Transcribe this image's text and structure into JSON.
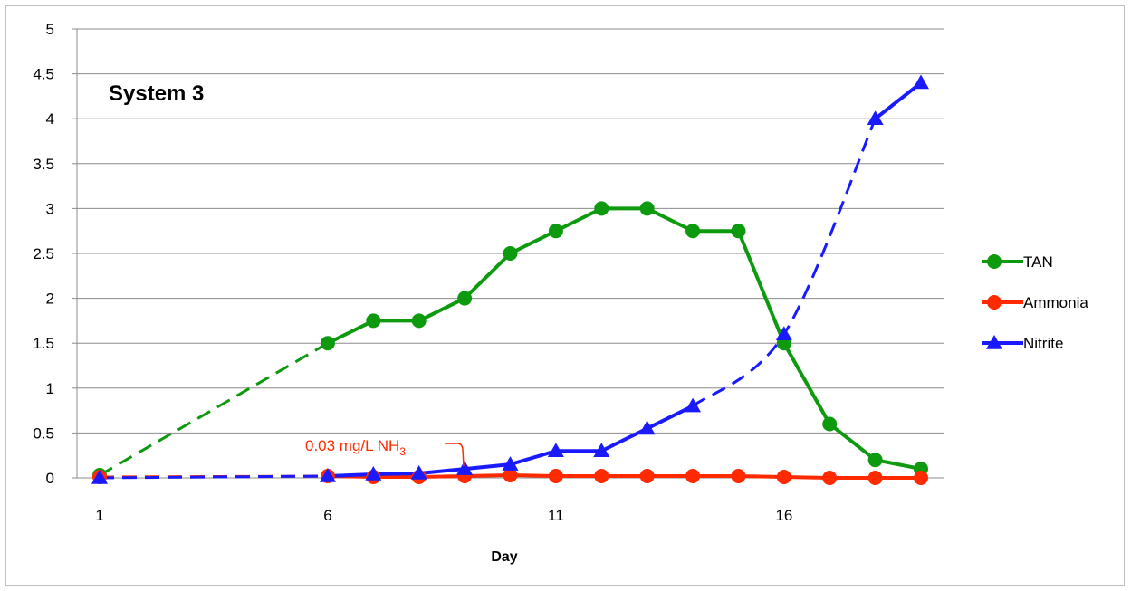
{
  "chart_data": {
    "type": "line",
    "title": "System 3",
    "xlabel": "Day",
    "ylabel": "",
    "xlim": [
      1,
      19
    ],
    "ylim": [
      0,
      5
    ],
    "xticks": [
      1,
      6,
      11,
      16
    ],
    "yticks": [
      0,
      0.5,
      1,
      1.5,
      2,
      2.5,
      3,
      3.5,
      4,
      4.5,
      5
    ],
    "grid": "horizontal",
    "legend": "right",
    "series": [
      {
        "name": "TAN",
        "color": "#0e9a0e",
        "marker": "circle",
        "x": [
          1,
          6,
          7,
          8,
          9,
          10,
          11,
          12,
          13,
          14,
          15,
          16,
          17,
          18,
          19
        ],
        "y": [
          0.03,
          1.5,
          1.75,
          1.75,
          2.0,
          2.5,
          2.75,
          3.0,
          3.0,
          2.75,
          2.75,
          1.5,
          0.6,
          0.2,
          0.1
        ],
        "dashed_segments": [
          [
            1,
            6
          ]
        ]
      },
      {
        "name": "Ammonia",
        "color": "#ff2a00",
        "marker": "circle",
        "x": [
          1,
          6,
          7,
          8,
          9,
          10,
          11,
          12,
          13,
          14,
          15,
          16,
          17,
          18,
          19
        ],
        "y": [
          0.01,
          0.02,
          0.01,
          0.01,
          0.02,
          0.03,
          0.02,
          0.02,
          0.02,
          0.02,
          0.02,
          0.01,
          0.0,
          0.0,
          0.0
        ],
        "dashed_segments": [
          [
            1,
            6
          ]
        ]
      },
      {
        "name": "Nitrite",
        "color": "#1a1aff",
        "marker": "triangle",
        "x": [
          1,
          6,
          7,
          8,
          9,
          10,
          11,
          12,
          13,
          14,
          16,
          18,
          19
        ],
        "y": [
          0.0,
          0.02,
          0.04,
          0.05,
          0.1,
          0.15,
          0.3,
          0.3,
          0.55,
          0.8,
          1.6,
          4.0,
          4.4
        ],
        "dashed_segments": [
          [
            1,
            6
          ],
          [
            14,
            18
          ]
        ]
      }
    ],
    "annotations": [
      {
        "text": "0.03 mg/L NH",
        "subscript": "3",
        "color": "#ff2a00",
        "x": 10,
        "y": 0.03
      }
    ]
  }
}
